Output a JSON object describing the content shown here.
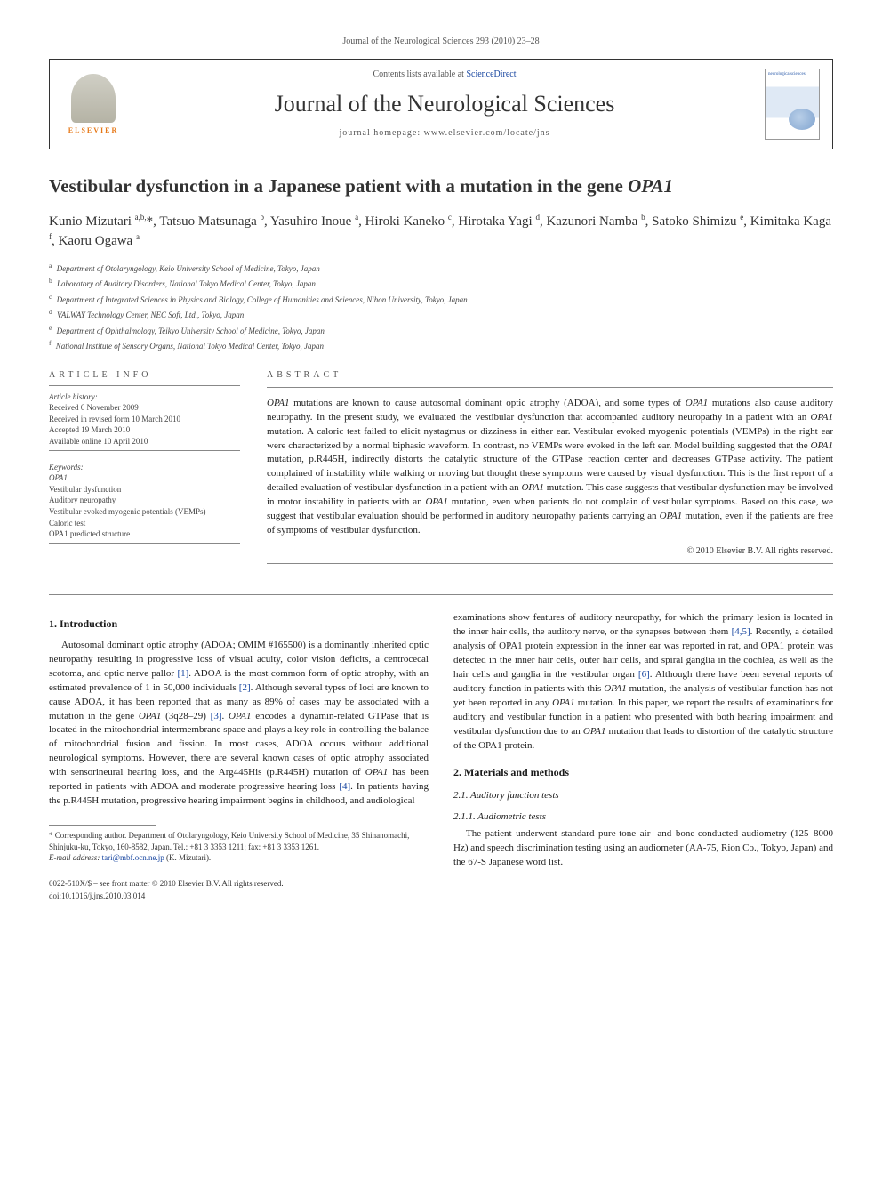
{
  "journal_ref": "Journal of the Neurological Sciences 293 (2010) 23–28",
  "header": {
    "contents_prefix": "Contents lists available at ",
    "contents_link": "ScienceDirect",
    "journal_title": "Journal of the Neurological Sciences",
    "homepage_prefix": "journal homepage: ",
    "homepage": "www.elsevier.com/locate/jns",
    "publisher": "ELSEVIER",
    "cover_label": "neurologicalsciences"
  },
  "title_plain": "Vestibular dysfunction in a Japanese patient with a mutation in the gene ",
  "title_gene": "OPA1",
  "authors_html": "Kunio Mizutari <sup>a,b,</sup>*, Tatsuo Matsunaga <sup>b</sup>, Yasuhiro Inoue <sup>a</sup>, Hiroki Kaneko <sup>c</sup>, Hirotaka Yagi <sup>d</sup>, Kazunori Namba <sup>b</sup>, Satoko Shimizu <sup>e</sup>, Kimitaka Kaga <sup>f</sup>, Kaoru Ogawa <sup>a</sup>",
  "affiliations": [
    {
      "sup": "a",
      "text": "Department of Otolaryngology, Keio University School of Medicine, Tokyo, Japan"
    },
    {
      "sup": "b",
      "text": "Laboratory of Auditory Disorders, National Tokyo Medical Center, Tokyo, Japan"
    },
    {
      "sup": "c",
      "text": "Department of Integrated Sciences in Physics and Biology, College of Humanities and Sciences, Nihon University, Tokyo, Japan"
    },
    {
      "sup": "d",
      "text": "VALWAY Technology Center, NEC Soft, Ltd., Tokyo, Japan"
    },
    {
      "sup": "e",
      "text": "Department of Ophthalmology, Teikyo University School of Medicine, Tokyo, Japan"
    },
    {
      "sup": "f",
      "text": "National Institute of Sensory Organs, National Tokyo Medical Center, Tokyo, Japan"
    }
  ],
  "info": {
    "head": "ARTICLE INFO",
    "history_label": "Article history:",
    "history": [
      "Received 6 November 2009",
      "Received in revised form 10 March 2010",
      "Accepted 19 March 2010",
      "Available online 10 April 2010"
    ],
    "keywords_label": "Keywords:",
    "keywords": [
      "OPA1",
      "Vestibular dysfunction",
      "Auditory neuropathy",
      "Vestibular evoked myogenic potentials (VEMPs)",
      "Caloric test",
      "OPA1 predicted structure"
    ]
  },
  "abstract": {
    "head": "ABSTRACT",
    "text_html": "<em>OPA1</em> mutations are known to cause autosomal dominant optic atrophy (ADOA), and some types of <em>OPA1</em> mutations also cause auditory neuropathy. In the present study, we evaluated the vestibular dysfunction that accompanied auditory neuropathy in a patient with an <em>OPA1</em> mutation. A caloric test failed to elicit nystagmus or dizziness in either ear. Vestibular evoked myogenic potentials (VEMPs) in the right ear were characterized by a normal biphasic waveform. In contrast, no VEMPs were evoked in the left ear. Model building suggested that the <em>OPA1</em> mutation, p.R445H, indirectly distorts the catalytic structure of the GTPase reaction center and decreases GTPase activity. The patient complained of instability while walking or moving but thought these symptoms were caused by visual dysfunction. This is the first report of a detailed evaluation of vestibular dysfunction in a patient with an <em>OPA1</em> mutation. This case suggests that vestibular dysfunction may be involved in motor instability in patients with an <em>OPA1</em> mutation, even when patients do not complain of vestibular symptoms. Based on this case, we suggest that vestibular evaluation should be performed in auditory neuropathy patients carrying an <em>OPA1</em> mutation, even if the patients are free of symptoms of vestibular dysfunction.",
    "copyright": "© 2010 Elsevier B.V. All rights reserved."
  },
  "sections": {
    "intro_head": "1. Introduction",
    "intro_p1_html": "Autosomal dominant optic atrophy (ADOA; OMIM #165500) is a dominantly inherited optic neuropathy resulting in progressive loss of visual acuity, color vision deficits, a centrocecal scotoma, and optic nerve pallor <span class=\"ref-link\">[1]</span>. ADOA is the most common form of optic atrophy, with an estimated prevalence of 1 in 50,000 individuals <span class=\"ref-link\">[2]</span>. Although several types of loci are known to cause ADOA, it has been reported that as many as 89% of cases may be associated with a mutation in the gene <em>OPA1</em> (3q28–29) <span class=\"ref-link\">[3]</span>. <em>OPA1</em> encodes a dynamin-related GTPase that is located in the mitochondrial intermembrane space and plays a key role in controlling the balance of mitochondrial fusion and fission. In most cases, ADOA occurs without additional neurological symptoms. However, there are several known cases of optic atrophy associated with sensorineural hearing loss, and the Arg445His (p.R445H) mutation of <em>OPA1</em> has been reported in patients with ADOA and moderate progressive hearing loss <span class=\"ref-link\">[4]</span>. In patients having the p.R445H mutation, progressive hearing impairment begins in childhood, and audiological",
    "intro_p2_html": "examinations show features of auditory neuropathy, for which the primary lesion is located in the inner hair cells, the auditory nerve, or the synapses between them <span class=\"ref-link\">[4,5]</span>. Recently, a detailed analysis of OPA1 protein expression in the inner ear was reported in rat, and OPA1 protein was detected in the inner hair cells, outer hair cells, and spiral ganglia in the cochlea, as well as the hair cells and ganglia in the vestibular organ <span class=\"ref-link\">[6]</span>. Although there have been several reports of auditory function in patients with this <em>OPA1</em> mutation, the analysis of vestibular function has not yet been reported in any <em>OPA1</em> mutation. In this paper, we report the results of examinations for auditory and vestibular function in a patient who presented with both hearing impairment and vestibular dysfunction due to an <em>OPA1</em> mutation that leads to distortion of the catalytic structure of the OPA1 protein.",
    "methods_head": "2. Materials and methods",
    "sub_2_1": "2.1. Auditory function tests",
    "sub_2_1_1": "2.1.1. Audiometric tests",
    "p_2_1_1": "The patient underwent standard pure-tone air- and bone-conducted audiometry (125–8000 Hz) and speech discrimination testing using an audiometer (AA-75, Rion Co., Tokyo, Japan) and the 67-S Japanese word list."
  },
  "footnotes": {
    "corr": "* Corresponding author. Department of Otolaryngology, Keio University School of Medicine, 35 Shinanomachi, Shinjuku-ku, Tokyo, 160-8582, Japan. Tel.: +81 3 3353 1211; fax: +81 3 3353 1261.",
    "email_label": "E-mail address:",
    "email": "tari@mbf.ocn.ne.jp",
    "email_person": "(K. Mizutari)."
  },
  "bottom": {
    "issn_line": "0022-510X/$ – see front matter © 2010 Elsevier B.V. All rights reserved.",
    "doi": "doi:10.1016/j.jns.2010.03.014"
  },
  "colors": {
    "link": "#1846a0",
    "elsevier_orange": "#e67817",
    "rule": "#888888"
  }
}
